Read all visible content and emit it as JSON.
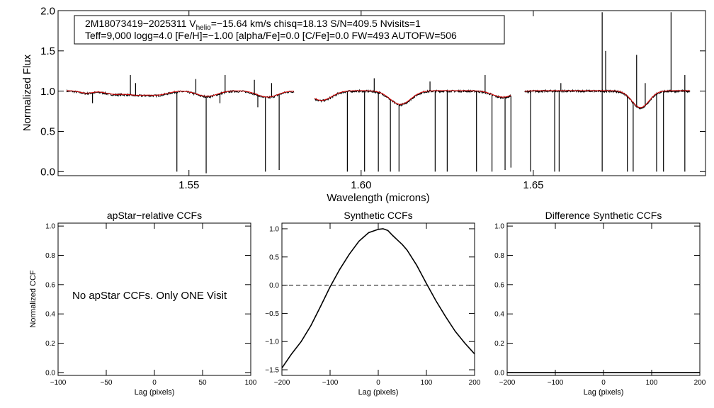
{
  "spectrum_panel": {
    "info_line1_pre": "2M18073419−2025311  V",
    "info_line1_sub": "helio",
    "info_line1_post": "=−15.64 km/s  chisq=18.13  S/N=409.5  Nvisits=1",
    "info_line2": "Teff=9,000 logg=4.0 [Fe/H]=−1.00 [alpha/Fe]=0.0 [C/Fe]=0.0 FW=493 AUTOFW=506"
  },
  "panel_left": {
    "message": "No apStar CCFs.  Only ONE Visit"
  },
  "colors": {
    "observed": "#000000",
    "model": "#e00000",
    "axes": "#000000"
  },
  "chart_data": [
    {
      "type": "line",
      "title": "",
      "xlabel": "Wavelength (microns)",
      "ylabel": "Normalized Flux",
      "xlim": [
        1.512,
        1.7
      ],
      "ylim": [
        -0.05,
        2.0
      ],
      "xticks": [
        1.55,
        1.6,
        1.65
      ],
      "xtick_labels": [
        "1.55",
        "1.60",
        "1.65"
      ],
      "yticks": [
        0.0,
        0.5,
        1.0,
        1.5,
        2.0
      ],
      "ytick_labels": [
        "0.0",
        "0.5",
        "1.0",
        "1.5",
        "2.0"
      ],
      "chips": [
        [
          1.5145,
          1.5805
        ],
        [
          1.5865,
          1.6435
        ],
        [
          1.6475,
          1.6955
        ]
      ],
      "continuum": 1.0,
      "absorption_features": [
        {
          "center": 1.5203,
          "depth": 0.03,
          "width": 0.002
        },
        {
          "center": 1.528,
          "depth": 0.04,
          "width": 0.0025
        },
        {
          "center": 1.5345,
          "depth": 0.05,
          "width": 0.003
        },
        {
          "center": 1.541,
          "depth": 0.05,
          "width": 0.003
        },
        {
          "center": 1.5553,
          "depth": 0.07,
          "width": 0.003
        },
        {
          "center": 1.5728,
          "depth": 0.08,
          "width": 0.003
        },
        {
          "center": 1.5885,
          "depth": 0.12,
          "width": 0.003
        },
        {
          "center": 1.6114,
          "depth": 0.17,
          "width": 0.003
        },
        {
          "center": 1.6412,
          "depth": 0.08,
          "width": 0.003
        },
        {
          "center": 1.6811,
          "depth": 0.21,
          "width": 0.0025
        }
      ],
      "spikes_down": [
        {
          "x": 1.5465,
          "y": 0.0
        },
        {
          "x": 1.555,
          "y": -0.02
        },
        {
          "x": 1.5722,
          "y": 0.0
        },
        {
          "x": 1.5762,
          "y": 0.02
        },
        {
          "x": 1.559,
          "y": 0.85
        },
        {
          "x": 1.57,
          "y": 0.8
        },
        {
          "x": 1.522,
          "y": 0.85
        },
        {
          "x": 1.596,
          "y": 0.0
        },
        {
          "x": 1.601,
          "y": 0.0
        },
        {
          "x": 1.605,
          "y": 0.0
        },
        {
          "x": 1.6085,
          "y": 0.0
        },
        {
          "x": 1.611,
          "y": 0.0
        },
        {
          "x": 1.6215,
          "y": 0.0
        },
        {
          "x": 1.625,
          "y": 0.0
        },
        {
          "x": 1.6335,
          "y": 0.0
        },
        {
          "x": 1.638,
          "y": 0.0
        },
        {
          "x": 1.6418,
          "y": 0.02
        },
        {
          "x": 1.6435,
          "y": 0.05
        },
        {
          "x": 1.6492,
          "y": 0.0
        },
        {
          "x": 1.6562,
          "y": 0.0
        },
        {
          "x": 1.6575,
          "y": 0.0
        },
        {
          "x": 1.67,
          "y": 0.0
        },
        {
          "x": 1.6773,
          "y": 0.0
        },
        {
          "x": 1.679,
          "y": 0.0
        },
        {
          "x": 1.6858,
          "y": 0.0
        },
        {
          "x": 1.6878,
          "y": 0.0
        },
        {
          "x": 1.694,
          "y": 0.0
        }
      ],
      "spikes_up": [
        {
          "x": 1.533,
          "y": 1.2
        },
        {
          "x": 1.5345,
          "y": 1.1
        },
        {
          "x": 1.552,
          "y": 1.15
        },
        {
          "x": 1.5605,
          "y": 1.2
        },
        {
          "x": 1.569,
          "y": 1.14
        },
        {
          "x": 1.574,
          "y": 1.1
        },
        {
          "x": 1.6038,
          "y": 1.16
        },
        {
          "x": 1.62,
          "y": 1.12
        },
        {
          "x": 1.636,
          "y": 1.2
        },
        {
          "x": 1.658,
          "y": 1.1
        },
        {
          "x": 1.67,
          "y": 1.98
        },
        {
          "x": 1.671,
          "y": 1.5
        },
        {
          "x": 1.68,
          "y": 1.45
        },
        {
          "x": 1.6825,
          "y": 1.1
        },
        {
          "x": 1.69,
          "y": 1.98
        },
        {
          "x": 1.694,
          "y": 1.2
        }
      ]
    },
    {
      "type": "line",
      "title": "apStar−relative CCFs",
      "xlabel": "Lag (pixels)",
      "ylabel": "Normalized CCF",
      "xlim": [
        -100,
        100
      ],
      "ylim": [
        -0.02,
        1.02
      ],
      "xticks": [
        -100,
        -50,
        0,
        50,
        100
      ],
      "xtick_labels": [
        "−100",
        "−50",
        "0",
        "50",
        "100"
      ],
      "yticks": [
        0.0,
        0.2,
        0.4,
        0.6,
        0.8,
        1.0
      ],
      "ytick_labels": [
        "0.0",
        "0.2",
        "0.4",
        "0.6",
        "0.8",
        "1.0"
      ],
      "series": []
    },
    {
      "type": "line",
      "title": "Synthetic CCFs",
      "xlabel": "Lag (pixels)",
      "ylabel": "",
      "xlim": [
        -200,
        200
      ],
      "ylim": [
        -1.6,
        1.1
      ],
      "xticks": [
        -200,
        -100,
        0,
        100,
        200
      ],
      "xtick_labels": [
        "−200",
        "−100",
        "0",
        "100",
        "200"
      ],
      "yticks": [
        -1.5,
        -1.0,
        -0.5,
        0.0,
        0.5,
        1.0
      ],
      "ytick_labels": [
        "−1.5",
        "−1.0",
        "−0.5",
        "0.0",
        "0.5",
        "1.0"
      ],
      "reference_line": 0.0,
      "series": [
        {
          "name": "synthetic",
          "x": [
            -200,
            -180,
            -160,
            -140,
            -120,
            -100,
            -80,
            -60,
            -40,
            -20,
            0,
            10,
            20,
            30,
            40,
            50,
            60,
            80,
            100,
            120,
            140,
            160,
            180,
            200
          ],
          "y": [
            -1.47,
            -1.22,
            -1.0,
            -0.72,
            -0.38,
            -0.03,
            0.28,
            0.55,
            0.78,
            0.93,
            0.99,
            1.0,
            0.97,
            0.88,
            0.8,
            0.72,
            0.62,
            0.35,
            0.03,
            -0.28,
            -0.56,
            -0.82,
            -1.03,
            -1.22
          ]
        }
      ]
    },
    {
      "type": "line",
      "title": "Difference Synthetic CCFs",
      "xlabel": "Lag (pixels)",
      "ylabel": "",
      "xlim": [
        -200,
        200
      ],
      "ylim": [
        -0.02,
        1.02
      ],
      "xticks": [
        -200,
        -100,
        0,
        100,
        200
      ],
      "xtick_labels": [
        "−200",
        "−100",
        "0",
        "100",
        "200"
      ],
      "yticks": [
        0.0,
        0.2,
        0.4,
        0.6,
        0.8,
        1.0
      ],
      "ytick_labels": [
        "0.0",
        "0.2",
        "0.4",
        "0.6",
        "0.8",
        "1.0"
      ],
      "series": [
        {
          "name": "difference",
          "x": [
            -200,
            200
          ],
          "y": [
            0.0,
            0.0
          ]
        }
      ]
    }
  ]
}
